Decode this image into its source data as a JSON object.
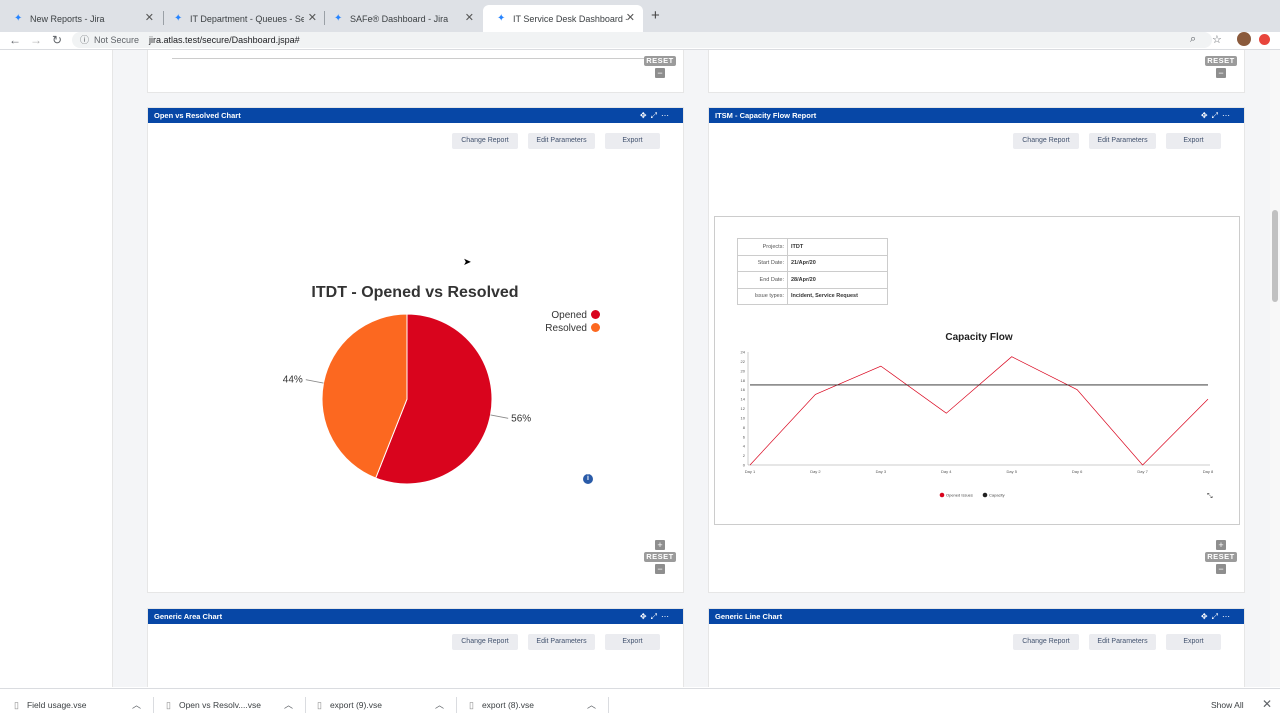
{
  "tabs": [
    {
      "title": "New Reports - Jira",
      "close": "✕"
    },
    {
      "title": "IT Department - Queues - Servic",
      "close": "✕"
    },
    {
      "title": "SAFe® Dashboard - Jira",
      "close": "✕"
    },
    {
      "title": "IT Service Desk Dashboard - Jira",
      "close": "✕"
    }
  ],
  "browser": {
    "security": "Not Secure",
    "url": "jira.atlas.test/secure/Dashboard.jspa#",
    "new_tab": "+"
  },
  "reset_label": "RESET",
  "buttons": {
    "change_report": "Change Report",
    "edit_parameters": "Edit Parameters",
    "export": "Export"
  },
  "gadgets": {
    "open_vs_resolved": {
      "title": "Open vs Resolved Chart"
    },
    "capacity_flow": {
      "title": "ITSM - Capacity Flow Report"
    },
    "generic_area": {
      "title": "Generic Area Chart"
    },
    "generic_line": {
      "title": "Generic Line Chart"
    }
  },
  "capacity_info": [
    {
      "key": "Projects:",
      "value": "ITDT"
    },
    {
      "key": "Start Date:",
      "value": "21/Apr/20"
    },
    {
      "key": "End Date:",
      "value": "28/Apr/20"
    },
    {
      "key": "Issue types:",
      "value": "Incident, Service Request"
    }
  ],
  "chart_data": [
    {
      "type": "pie",
      "title": "ITDT - Opened vs Resolved",
      "slices": [
        {
          "label": "Opened",
          "value": 56,
          "display": "56%",
          "color": "#d9041d"
        },
        {
          "label": "Resolved",
          "value": 44,
          "display": "44%",
          "color": "#fc6820"
        }
      ],
      "legend": "top-right"
    },
    {
      "type": "line",
      "title": "Capacity Flow",
      "categories": [
        "Day 1",
        "Day 2",
        "Day 3",
        "Day 4",
        "Day 5",
        "Day 6",
        "Day 7",
        "Day 8"
      ],
      "ylim": [
        0,
        24
      ],
      "yticks": [
        0,
        2,
        4,
        6,
        8,
        10,
        12,
        14,
        16,
        18,
        20,
        22,
        24
      ],
      "series": [
        {
          "name": "Opened Issues",
          "color": "#d9041d",
          "values": [
            0,
            15,
            21,
            11,
            23,
            16,
            0,
            14
          ]
        },
        {
          "name": "Capacity",
          "color": "#222222",
          "values": [
            17,
            17,
            17,
            17,
            17,
            17,
            17,
            17
          ]
        }
      ],
      "legend": "bottom"
    }
  ],
  "downloads": [
    {
      "name": "Field usage.vse"
    },
    {
      "name": "Open vs Resolv....vse"
    },
    {
      "name": "export (9).vse"
    },
    {
      "name": "export (8).vse"
    }
  ],
  "show_all": "Show All"
}
